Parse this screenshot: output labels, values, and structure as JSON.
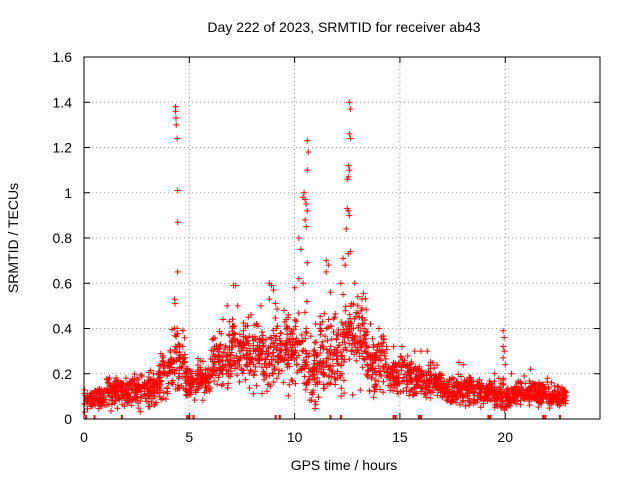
{
  "chart_data": {
    "type": "scatter",
    "title": "Day 222 of 2023, SRMTID for receiver ab43",
    "xlabel": "GPS time / hours",
    "ylabel": "SRMTID / TECUs",
    "xlim": [
      0,
      24.5
    ],
    "ylim": [
      0,
      1.6
    ],
    "x_ticks": [
      "0",
      "5",
      "10",
      "15",
      "20"
    ],
    "y_ticks": [
      "0",
      "0.2",
      "0.4",
      "0.6",
      "0.8",
      "1",
      "1.2",
      "1.4",
      "1.6"
    ],
    "grid": true,
    "marker": "plus",
    "color": "#ff0000",
    "series": [
      {
        "name": "SRMTID",
        "baseline_segments": [
          [
            0.0,
            1.0,
            0.09,
            0.04
          ],
          [
            1.0,
            2.5,
            0.12,
            0.06
          ],
          [
            2.5,
            3.5,
            0.13,
            0.07
          ],
          [
            3.5,
            4.0,
            0.18,
            0.1
          ],
          [
            4.0,
            4.8,
            0.25,
            0.12
          ],
          [
            4.8,
            6.0,
            0.17,
            0.07
          ],
          [
            6.0,
            7.0,
            0.26,
            0.1
          ],
          [
            7.0,
            8.0,
            0.3,
            0.12
          ],
          [
            8.0,
            9.0,
            0.28,
            0.12
          ],
          [
            9.0,
            9.6,
            0.3,
            0.14
          ],
          [
            9.6,
            10.6,
            0.3,
            0.15
          ],
          [
            10.6,
            11.2,
            0.22,
            0.12
          ],
          [
            11.2,
            11.8,
            0.3,
            0.15
          ],
          [
            11.8,
            12.4,
            0.3,
            0.15
          ],
          [
            12.4,
            13.4,
            0.36,
            0.16
          ],
          [
            13.4,
            14.4,
            0.24,
            0.12
          ],
          [
            14.4,
            15.5,
            0.2,
            0.08
          ],
          [
            15.5,
            17.0,
            0.17,
            0.07
          ],
          [
            17.0,
            18.5,
            0.13,
            0.06
          ],
          [
            18.5,
            19.5,
            0.12,
            0.05
          ],
          [
            19.5,
            20.5,
            0.1,
            0.05
          ],
          [
            20.5,
            22.0,
            0.12,
            0.05
          ],
          [
            22.0,
            22.9,
            0.1,
            0.04
          ]
        ],
        "spikes": [
          [
            4.35,
            1.38
          ],
          [
            4.35,
            1.36
          ],
          [
            4.37,
            1.33
          ],
          [
            4.38,
            1.3
          ],
          [
            4.42,
            1.24
          ],
          [
            4.45,
            1.01
          ],
          [
            4.45,
            0.87
          ],
          [
            4.45,
            0.65
          ],
          [
            4.3,
            0.53
          ],
          [
            4.32,
            0.51
          ],
          [
            4.3,
            0.4
          ],
          [
            4.33,
            0.37
          ],
          [
            10.4,
            0.98
          ],
          [
            10.45,
            1.0
          ],
          [
            10.5,
            0.97
          ],
          [
            10.55,
            0.95
          ],
          [
            10.6,
            0.92
          ],
          [
            10.6,
            1.1
          ],
          [
            10.65,
            1.18
          ],
          [
            10.6,
            1.23
          ],
          [
            10.5,
            0.88
          ],
          [
            10.55,
            0.85
          ],
          [
            10.2,
            0.8
          ],
          [
            10.3,
            0.75
          ],
          [
            10.6,
            0.69
          ],
          [
            10.2,
            0.62
          ],
          [
            10.4,
            0.6
          ],
          [
            10.0,
            0.58
          ],
          [
            11.5,
            0.7
          ],
          [
            11.6,
            0.68
          ],
          [
            11.5,
            0.65
          ],
          [
            11.7,
            0.56
          ],
          [
            12.6,
            1.4
          ],
          [
            12.65,
            1.37
          ],
          [
            12.6,
            1.26
          ],
          [
            12.65,
            1.24
          ],
          [
            12.55,
            1.12
          ],
          [
            12.6,
            1.1
          ],
          [
            12.55,
            1.07
          ],
          [
            12.5,
            1.06
          ],
          [
            12.5,
            0.93
          ],
          [
            12.55,
            0.92
          ],
          [
            12.6,
            0.9
          ],
          [
            12.45,
            0.84
          ],
          [
            12.55,
            0.73
          ],
          [
            12.65,
            0.74
          ],
          [
            12.3,
            0.71
          ],
          [
            12.4,
            0.68
          ],
          [
            12.2,
            0.6
          ],
          [
            12.3,
            0.55
          ],
          [
            13.0,
            0.54
          ],
          [
            13.2,
            0.53
          ],
          [
            13.0,
            0.5
          ],
          [
            13.2,
            0.49
          ],
          [
            7.1,
            0.59
          ],
          [
            7.2,
            0.59
          ],
          [
            8.8,
            0.6
          ],
          [
            8.9,
            0.59
          ],
          [
            9.0,
            0.57
          ],
          [
            8.8,
            0.53
          ],
          [
            6.8,
            0.5
          ],
          [
            7.3,
            0.5
          ],
          [
            8.4,
            0.5
          ],
          [
            9.5,
            0.48
          ],
          [
            9.7,
            0.46
          ],
          [
            9.6,
            0.44
          ],
          [
            6.6,
            0.44
          ],
          [
            6.9,
            0.43
          ],
          [
            7.8,
            0.45
          ],
          [
            8.2,
            0.42
          ],
          [
            11.0,
            0.42
          ],
          [
            11.2,
            0.4
          ],
          [
            11.9,
            0.45
          ],
          [
            13.6,
            0.42
          ],
          [
            14.0,
            0.4
          ],
          [
            19.9,
            0.39
          ],
          [
            19.95,
            0.36
          ],
          [
            19.9,
            0.32
          ],
          [
            19.95,
            0.3
          ],
          [
            19.9,
            0.27
          ],
          [
            20.0,
            0.24
          ],
          [
            19.5,
            0.2
          ],
          [
            19.7,
            0.18
          ],
          [
            20.3,
            0.2
          ],
          [
            20.9,
            0.19
          ],
          [
            21.2,
            0.22
          ],
          [
            22.0,
            0.18
          ],
          [
            22.2,
            0.16
          ],
          [
            16.0,
            0.3
          ],
          [
            16.3,
            0.3
          ],
          [
            15.7,
            0.3
          ],
          [
            15.1,
            0.32
          ],
          [
            14.7,
            0.32
          ],
          [
            17.8,
            0.25
          ],
          [
            18.0,
            0.24
          ]
        ],
        "zero_ticks": [
          0.1,
          0.5,
          1.8,
          4.9,
          5.0,
          5.2,
          9.1,
          9.3,
          11.7,
          12.2,
          14.7,
          14.8,
          15.9,
          16.0,
          19.2,
          19.3,
          21.8,
          21.9,
          22.6
        ]
      }
    ]
  }
}
